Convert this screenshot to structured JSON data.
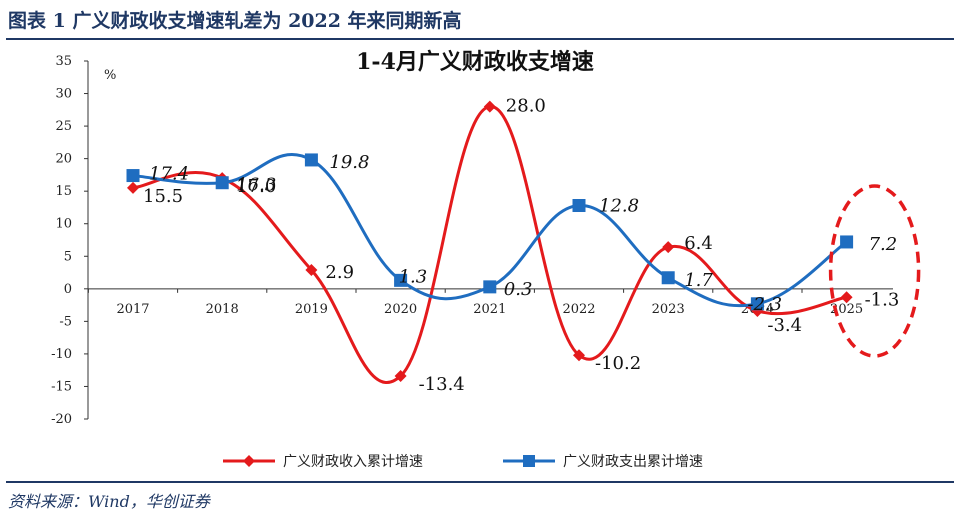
{
  "header": {
    "title": "图表 1    广义财政收支增速轧差为 2022 年来同期新高"
  },
  "source": "资料来源：Wind，华创证券",
  "colors": {
    "income": "#e41a1c",
    "spend": "#1f6dc0",
    "header": "#1f3864"
  },
  "chart_data": {
    "type": "line",
    "title": "1-4月广义财政收支增速",
    "unit": "%",
    "categories": [
      "2017",
      "2018",
      "2019",
      "2020",
      "2021",
      "2022",
      "2023",
      "2024",
      "2025"
    ],
    "ylim": [
      -20,
      35
    ],
    "yticks": [
      35,
      30,
      25,
      20,
      15,
      10,
      5,
      0,
      -5,
      -10,
      -15,
      -20
    ],
    "grid": false,
    "legend": "bottom",
    "series": [
      {
        "name": "广义财政收入累计增速",
        "color": "#e41a1c",
        "marker": "diamond",
        "label_style": "normal",
        "values": [
          15.5,
          17.0,
          2.9,
          -13.4,
          28.0,
          -10.2,
          6.4,
          -3.4,
          -1.3
        ],
        "labels": [
          "15.5",
          "17.0",
          "2.9",
          "-13.4",
          "28.0",
          "-10.2",
          "6.4",
          "-3.4",
          "-1.3"
        ]
      },
      {
        "name": "广义财政支出累计增速",
        "color": "#1f6dc0",
        "marker": "square",
        "label_style": "italic",
        "values": [
          17.4,
          16.3,
          19.8,
          1.3,
          0.3,
          12.8,
          1.7,
          -2.3,
          7.2
        ],
        "labels": [
          "17.4",
          "16.3",
          "19.8",
          "1.3",
          "0.3",
          "12.8",
          "1.7",
          "-2.3",
          "7.2"
        ]
      }
    ],
    "annotation": {
      "type": "dashed-ellipse",
      "category": "2025",
      "color": "#e41a1c"
    }
  }
}
